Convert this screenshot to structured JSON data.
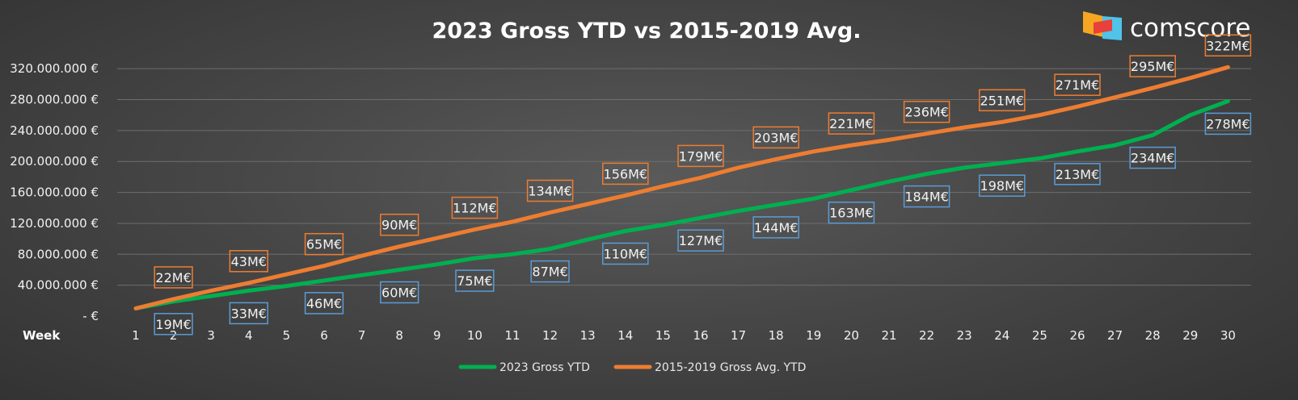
{
  "brand": {
    "name": "comscore",
    "logo_icon": "comscore-logo-icon"
  },
  "colors": {
    "series_2023": "#00b050",
    "series_avg": "#ed7d31",
    "box_2023": "#5b9bd5",
    "box_avg": "#ed7d31",
    "grid": "#6e6e6e",
    "text": "#f2f2f2"
  },
  "chart_data": {
    "type": "line",
    "title": "2023 Gross YTD vs 2015-2019 Avg.",
    "xlabel": "Week",
    "ylabel": "",
    "x": [
      1,
      2,
      3,
      4,
      5,
      6,
      7,
      8,
      9,
      10,
      11,
      12,
      13,
      14,
      15,
      16,
      17,
      18,
      19,
      20,
      21,
      22,
      23,
      24,
      25,
      26,
      27,
      28,
      29,
      30
    ],
    "ylim": [
      0,
      340000000
    ],
    "yticks": [
      0,
      40000000,
      80000000,
      120000000,
      160000000,
      200000000,
      240000000,
      280000000,
      320000000
    ],
    "ytick_labels": [
      "-  €",
      "40.000.000 €",
      "80.000.000 €",
      "120.000.000 €",
      "160.000.000 €",
      "200.000.000 €",
      "240.000.000 €",
      "280.000.000 €",
      "320.000.000 €"
    ],
    "grid": true,
    "legend_position": "bottom",
    "series": [
      {
        "name": "2023 Gross YTD",
        "values": [
          10000000,
          19000000,
          26000000,
          33000000,
          39000000,
          46000000,
          53000000,
          60000000,
          67000000,
          75000000,
          80000000,
          87000000,
          99000000,
          110000000,
          118000000,
          127000000,
          136000000,
          144000000,
          152000000,
          163000000,
          174000000,
          184000000,
          192000000,
          198000000,
          204000000,
          213000000,
          221000000,
          234000000,
          260000000,
          278000000
        ],
        "labels": [
          {
            "week": 2,
            "text": "19M€"
          },
          {
            "week": 4,
            "text": "33M€"
          },
          {
            "week": 6,
            "text": "46M€"
          },
          {
            "week": 8,
            "text": "60M€"
          },
          {
            "week": 10,
            "text": "75M€"
          },
          {
            "week": 12,
            "text": "87M€"
          },
          {
            "week": 14,
            "text": "110M€"
          },
          {
            "week": 16,
            "text": "127M€"
          },
          {
            "week": 18,
            "text": "144M€"
          },
          {
            "week": 20,
            "text": "163M€"
          },
          {
            "week": 22,
            "text": "184M€"
          },
          {
            "week": 24,
            "text": "198M€"
          },
          {
            "week": 26,
            "text": "213M€"
          },
          {
            "week": 28,
            "text": "234M€"
          },
          {
            "week": 30,
            "text": "278M€"
          }
        ]
      },
      {
        "name": "2015-2019 Gross Avg. YTD",
        "values": [
          10000000,
          22000000,
          33000000,
          43000000,
          54000000,
          65000000,
          78000000,
          90000000,
          101000000,
          112000000,
          122000000,
          134000000,
          145000000,
          156000000,
          168000000,
          179000000,
          192000000,
          203000000,
          213000000,
          221000000,
          228000000,
          236000000,
          244000000,
          251000000,
          260000000,
          271000000,
          283000000,
          295000000,
          308000000,
          322000000
        ],
        "labels": [
          {
            "week": 2,
            "text": "22M€"
          },
          {
            "week": 4,
            "text": "43M€"
          },
          {
            "week": 6,
            "text": "65M€"
          },
          {
            "week": 8,
            "text": "90M€"
          },
          {
            "week": 10,
            "text": "112M€"
          },
          {
            "week": 12,
            "text": "134M€"
          },
          {
            "week": 14,
            "text": "156M€"
          },
          {
            "week": 16,
            "text": "179M€"
          },
          {
            "week": 18,
            "text": "203M€"
          },
          {
            "week": 20,
            "text": "221M€"
          },
          {
            "week": 22,
            "text": "236M€"
          },
          {
            "week": 24,
            "text": "251M€"
          },
          {
            "week": 26,
            "text": "271M€"
          },
          {
            "week": 28,
            "text": "295M€"
          },
          {
            "week": 30,
            "text": "322M€"
          }
        ]
      }
    ]
  }
}
